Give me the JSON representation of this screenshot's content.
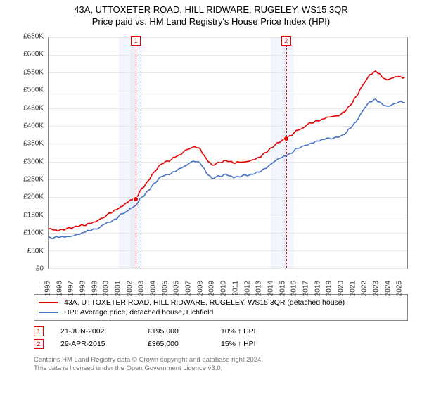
{
  "title": "43A, UTTOXETER ROAD, HILL RIDWARE, RUGELEY, WS15 3QR",
  "subtitle": "Price paid vs. HM Land Registry's House Price Index (HPI)",
  "chart": {
    "x_domain": [
      1995,
      2025.7
    ],
    "y_domain": [
      0,
      650
    ],
    "y_ticks": [
      0,
      50,
      100,
      150,
      200,
      250,
      300,
      350,
      400,
      450,
      500,
      550,
      600,
      650
    ],
    "y_tick_labels": [
      "£0",
      "£50K",
      "£100K",
      "£150K",
      "£200K",
      "£250K",
      "£300K",
      "£350K",
      "£400K",
      "£450K",
      "£500K",
      "£550K",
      "£600K",
      "£650K"
    ],
    "x_ticks": [
      1995,
      1996,
      1997,
      1998,
      1999,
      2000,
      2001,
      2002,
      2003,
      2004,
      2005,
      2006,
      2007,
      2008,
      2009,
      2010,
      2011,
      2012,
      2013,
      2014,
      2015,
      2016,
      2017,
      2018,
      2019,
      2020,
      2021,
      2022,
      2023,
      2024,
      2025
    ],
    "grid_color": "#e6e6e6",
    "background_color": "#ffffff",
    "shaded_light_color": "#f2f5fb",
    "shaded_band_color": "#e8edf7",
    "light_bands": [
      [
        2001,
        2003
      ],
      [
        2014,
        2016
      ]
    ],
    "dark_bands": [
      [
        2002,
        2002.5
      ],
      [
        2015,
        2015.4
      ]
    ],
    "line_width": 1.6,
    "axis_fontsize": 10
  },
  "series": [
    {
      "name": "property",
      "color": "#e60000",
      "points": [
        [
          1995,
          110
        ],
        [
          1995.5,
          107
        ],
        [
          1996,
          108
        ],
        [
          1996.5,
          110
        ],
        [
          1997,
          112
        ],
        [
          1997.5,
          117
        ],
        [
          1998,
          120
        ],
        [
          1998.5,
          126
        ],
        [
          1999,
          130
        ],
        [
          1999.5,
          140
        ],
        [
          2000,
          150
        ],
        [
          2000.5,
          158
        ],
        [
          2001,
          168
        ],
        [
          2001.5,
          180
        ],
        [
          2002,
          192
        ],
        [
          2002.47,
          195
        ],
        [
          2003,
          225
        ],
        [
          2003.5,
          245
        ],
        [
          2004,
          270
        ],
        [
          2004.5,
          290
        ],
        [
          2005,
          300
        ],
        [
          2005.5,
          305
        ],
        [
          2006,
          315
        ],
        [
          2006.5,
          325
        ],
        [
          2007,
          335
        ],
        [
          2007.5,
          342
        ],
        [
          2008,
          335
        ],
        [
          2008.5,
          308
        ],
        [
          2009,
          290
        ],
        [
          2009.5,
          298
        ],
        [
          2010,
          302
        ],
        [
          2010.5,
          300
        ],
        [
          2011,
          295
        ],
        [
          2011.5,
          298
        ],
        [
          2012,
          300
        ],
        [
          2012.5,
          305
        ],
        [
          2013,
          312
        ],
        [
          2013.5,
          325
        ],
        [
          2014,
          338
        ],
        [
          2014.5,
          352
        ],
        [
          2015,
          360
        ],
        [
          2015.33,
          365
        ],
        [
          2015.5,
          370
        ],
        [
          2016,
          380
        ],
        [
          2016.5,
          390
        ],
        [
          2017,
          400
        ],
        [
          2017.5,
          408
        ],
        [
          2018,
          415
        ],
        [
          2018.5,
          420
        ],
        [
          2019,
          425
        ],
        [
          2019.5,
          428
        ],
        [
          2020,
          432
        ],
        [
          2020.5,
          445
        ],
        [
          2021,
          465
        ],
        [
          2021.5,
          490
        ],
        [
          2022,
          520
        ],
        [
          2022.5,
          545
        ],
        [
          2023,
          555
        ],
        [
          2023.5,
          540
        ],
        [
          2024,
          530
        ],
        [
          2024.5,
          536
        ],
        [
          2025,
          540
        ],
        [
          2025.5,
          538
        ]
      ]
    },
    {
      "name": "hpi",
      "color": "#4a72c4",
      "points": [
        [
          1995,
          88
        ],
        [
          1995.5,
          86
        ],
        [
          1996,
          87
        ],
        [
          1996.5,
          88
        ],
        [
          1997,
          90
        ],
        [
          1997.5,
          95
        ],
        [
          1998,
          100
        ],
        [
          1998.5,
          105
        ],
        [
          1999,
          110
        ],
        [
          1999.5,
          118
        ],
        [
          2000,
          128
        ],
        [
          2000.5,
          135
        ],
        [
          2001,
          145
        ],
        [
          2001.5,
          155
        ],
        [
          2002,
          168
        ],
        [
          2002.5,
          177
        ],
        [
          2003,
          200
        ],
        [
          2003.5,
          218
        ],
        [
          2004,
          238
        ],
        [
          2004.5,
          255
        ],
        [
          2005,
          262
        ],
        [
          2005.5,
          266
        ],
        [
          2006,
          275
        ],
        [
          2006.5,
          284
        ],
        [
          2007,
          294
        ],
        [
          2007.5,
          300
        ],
        [
          2008,
          294
        ],
        [
          2008.5,
          268
        ],
        [
          2009,
          252
        ],
        [
          2009.5,
          260
        ],
        [
          2010,
          263
        ],
        [
          2010.5,
          260
        ],
        [
          2011,
          256
        ],
        [
          2011.5,
          258
        ],
        [
          2012,
          260
        ],
        [
          2012.5,
          264
        ],
        [
          2013,
          270
        ],
        [
          2013.5,
          280
        ],
        [
          2014,
          292
        ],
        [
          2014.5,
          304
        ],
        [
          2015,
          312
        ],
        [
          2015.5,
          320
        ],
        [
          2016,
          330
        ],
        [
          2016.5,
          338
        ],
        [
          2017,
          346
        ],
        [
          2017.5,
          352
        ],
        [
          2018,
          358
        ],
        [
          2018.5,
          362
        ],
        [
          2019,
          366
        ],
        [
          2019.5,
          368
        ],
        [
          2020,
          372
        ],
        [
          2020.5,
          382
        ],
        [
          2021,
          400
        ],
        [
          2021.5,
          420
        ],
        [
          2022,
          448
        ],
        [
          2022.5,
          468
        ],
        [
          2023,
          476
        ],
        [
          2023.5,
          464
        ],
        [
          2024,
          456
        ],
        [
          2024.5,
          462
        ],
        [
          2025,
          468
        ],
        [
          2025.5,
          466
        ]
      ]
    }
  ],
  "markers": [
    {
      "n": "1",
      "x": 2002.47,
      "y": 195,
      "date": "21-JUN-2002",
      "price": "£195,000",
      "pct": "10% ↑ HPI",
      "color": "#e60000"
    },
    {
      "n": "2",
      "x": 2015.33,
      "y": 365,
      "date": "29-APR-2015",
      "price": "£365,000",
      "pct": "15% ↑ HPI",
      "color": "#e60000"
    }
  ],
  "legend": [
    {
      "label": "43A, UTTOXETER ROAD, HILL RIDWARE, RUGELEY, WS15 3QR (detached house)",
      "color": "#e60000"
    },
    {
      "label": "HPI: Average price, detached house, Lichfield",
      "color": "#4a72c4"
    }
  ],
  "footer": {
    "line1": "Contains HM Land Registry data © Crown copyright and database right 2024.",
    "line2": "This data is licensed under the Open Government Licence v3.0."
  }
}
